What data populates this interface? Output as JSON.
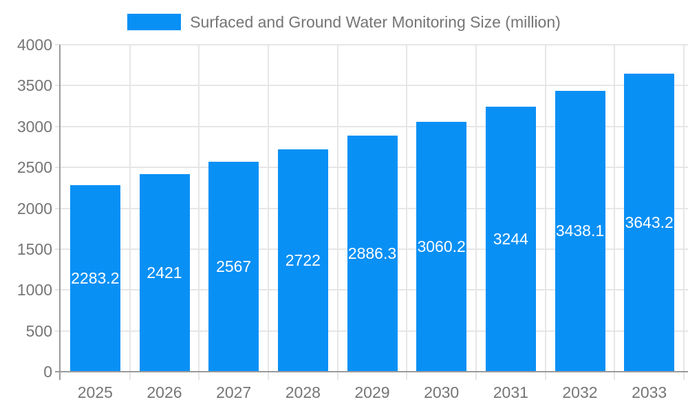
{
  "chart_data": {
    "type": "bar",
    "title": "Surfaced and Ground Water Monitoring Size (million)",
    "legend_position": "top",
    "categories": [
      "2025",
      "2026",
      "2027",
      "2028",
      "2029",
      "2030",
      "2031",
      "2032",
      "2033"
    ],
    "values": [
      2283.2,
      2421,
      2567,
      2722,
      2886.3,
      3060.2,
      3244,
      3438.1,
      3643.2
    ],
    "xlabel": "",
    "ylabel": "",
    "ylim": [
      0,
      4000
    ],
    "yticks": [
      0,
      500,
      1000,
      1500,
      2000,
      2500,
      3000,
      3500,
      4000
    ],
    "grid": true,
    "value_labels_inside_bars": true,
    "colors": {
      "bar": "#0990f5",
      "grid": "#e6e6e6",
      "axis": "#9a9a9a",
      "text": "#757575",
      "value_label": "#ffffff",
      "background": "#ffffff"
    }
  }
}
